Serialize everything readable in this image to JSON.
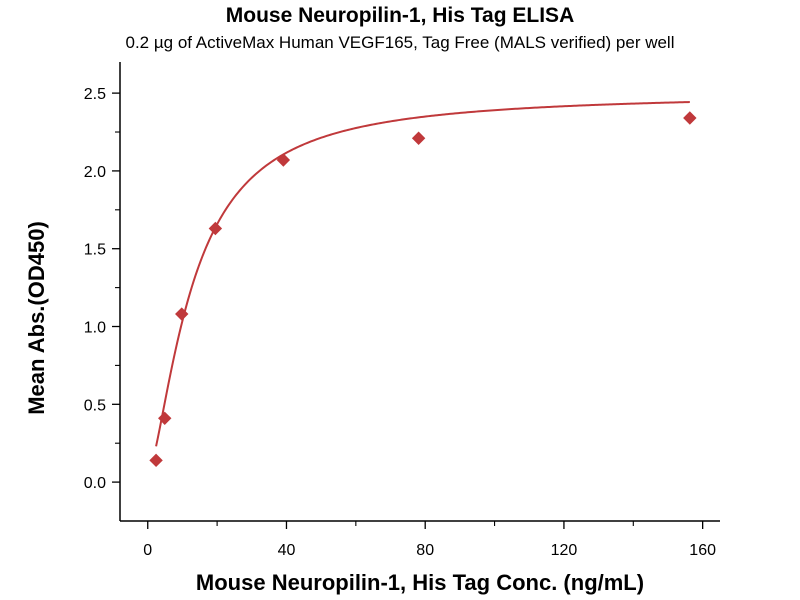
{
  "title": "Mouse Neuropilin-1, His Tag ELISA",
  "subtitle": "0.2 µg of ActiveMax Human VEGF165, Tag Free (MALS verified) per well",
  "colors": {
    "series": "#c0393b",
    "axis": "#000000"
  },
  "chart_data": {
    "type": "scatter",
    "title": "Mouse Neuropilin-1, His Tag ELISA",
    "subtitle": "0.2 µg of ActiveMax Human VEGF165, Tag Free (MALS verified) per well",
    "xlabel": "Mouse Neuropilin-1, His Tag Conc. (ng/mL)",
    "ylabel": "Mean Abs.(OD450)",
    "xlim": [
      -8,
      165
    ],
    "ylim": [
      -0.25,
      2.7
    ],
    "xticks": [
      0,
      40,
      80,
      120,
      160
    ],
    "yticks": [
      0.0,
      0.5,
      1.0,
      1.5,
      2.0,
      2.5
    ],
    "xtick_labels": [
      "0",
      "40",
      "80",
      "120",
      "160"
    ],
    "ytick_labels": [
      "0.0",
      "0.5",
      "1.0",
      "1.5",
      "2.0",
      "2.5"
    ],
    "grid": false,
    "series": [
      {
        "marker": "diamond",
        "fit": "4-parameter logistic curve",
        "x": [
          2.4,
          4.9,
          9.8,
          19.5,
          39.1,
          78.1,
          156.3
        ],
        "y": [
          0.14,
          0.41,
          1.08,
          1.63,
          2.07,
          2.21,
          2.34
        ]
      }
    ]
  }
}
